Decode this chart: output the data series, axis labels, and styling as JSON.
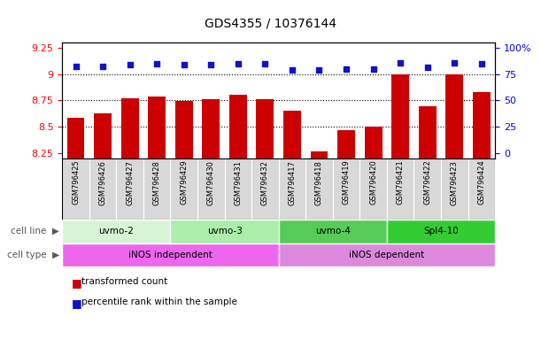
{
  "title": "GDS4355 / 10376144",
  "samples": [
    "GSM796425",
    "GSM796426",
    "GSM796427",
    "GSM796428",
    "GSM796429",
    "GSM796430",
    "GSM796431",
    "GSM796432",
    "GSM796417",
    "GSM796418",
    "GSM796419",
    "GSM796420",
    "GSM796421",
    "GSM796422",
    "GSM796423",
    "GSM796424"
  ],
  "transformed_counts": [
    8.58,
    8.63,
    8.77,
    8.79,
    8.74,
    8.76,
    8.8,
    8.76,
    8.65,
    8.26,
    8.47,
    8.5,
    9.0,
    8.69,
    9.0,
    8.83
  ],
  "percentile_ranks_pct": [
    82,
    82,
    84,
    85,
    84,
    84,
    85,
    85,
    79,
    79,
    80,
    80,
    86,
    81,
    86,
    85
  ],
  "ylim_left": [
    8.2,
    9.3
  ],
  "ylim_right": [
    -5,
    105
  ],
  "yticks_left": [
    8.25,
    8.5,
    8.75,
    9.0,
    9.25
  ],
  "ytick_labels_left": [
    "8.25",
    "8.5",
    "8.75",
    "9",
    "9.25"
  ],
  "yticks_right_pct": [
    0,
    25,
    50,
    75,
    100
  ],
  "ytick_labels_right": [
    "0",
    "25",
    "50",
    "75",
    "100%"
  ],
  "dotted_lines_pct": [
    75,
    50,
    25
  ],
  "bar_color": "#cc0000",
  "dot_color": "#1111cc",
  "cell_line_groups": [
    {
      "label": "uvmo-2",
      "start": 0,
      "end": 3,
      "color": "#d6f5d6"
    },
    {
      "label": "uvmo-3",
      "start": 4,
      "end": 7,
      "color": "#aaeeaa"
    },
    {
      "label": "uvmo-4",
      "start": 8,
      "end": 11,
      "color": "#55cc55"
    },
    {
      "label": "Spl4-10",
      "start": 12,
      "end": 15,
      "color": "#33cc33"
    }
  ],
  "cell_type_groups": [
    {
      "label": "iNOS independent",
      "start": 0,
      "end": 7,
      "color": "#ee66ee"
    },
    {
      "label": "iNOS dependent",
      "start": 8,
      "end": 15,
      "color": "#dd88dd"
    }
  ],
  "bar_base": 8.2
}
